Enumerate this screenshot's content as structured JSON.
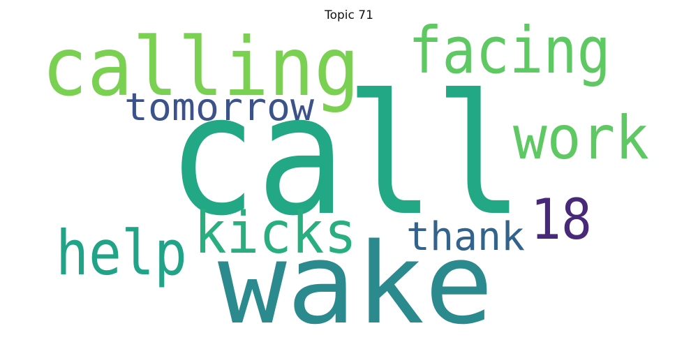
{
  "title": "Topic 71",
  "words": [
    {
      "text": "call",
      "color": "#22a884"
    },
    {
      "text": "wake",
      "color": "#2a8a8d"
    },
    {
      "text": "calling",
      "color": "#7ad151"
    },
    {
      "text": "facing",
      "color": "#5ec962"
    },
    {
      "text": "work",
      "color": "#5ec962"
    },
    {
      "text": "tomorrow",
      "color": "#3b528b"
    },
    {
      "text": "kicks",
      "color": "#29af7f"
    },
    {
      "text": "help",
      "color": "#20a386"
    },
    {
      "text": "thank",
      "color": "#33638d"
    },
    {
      "text": "18",
      "color": "#482878"
    }
  ]
}
